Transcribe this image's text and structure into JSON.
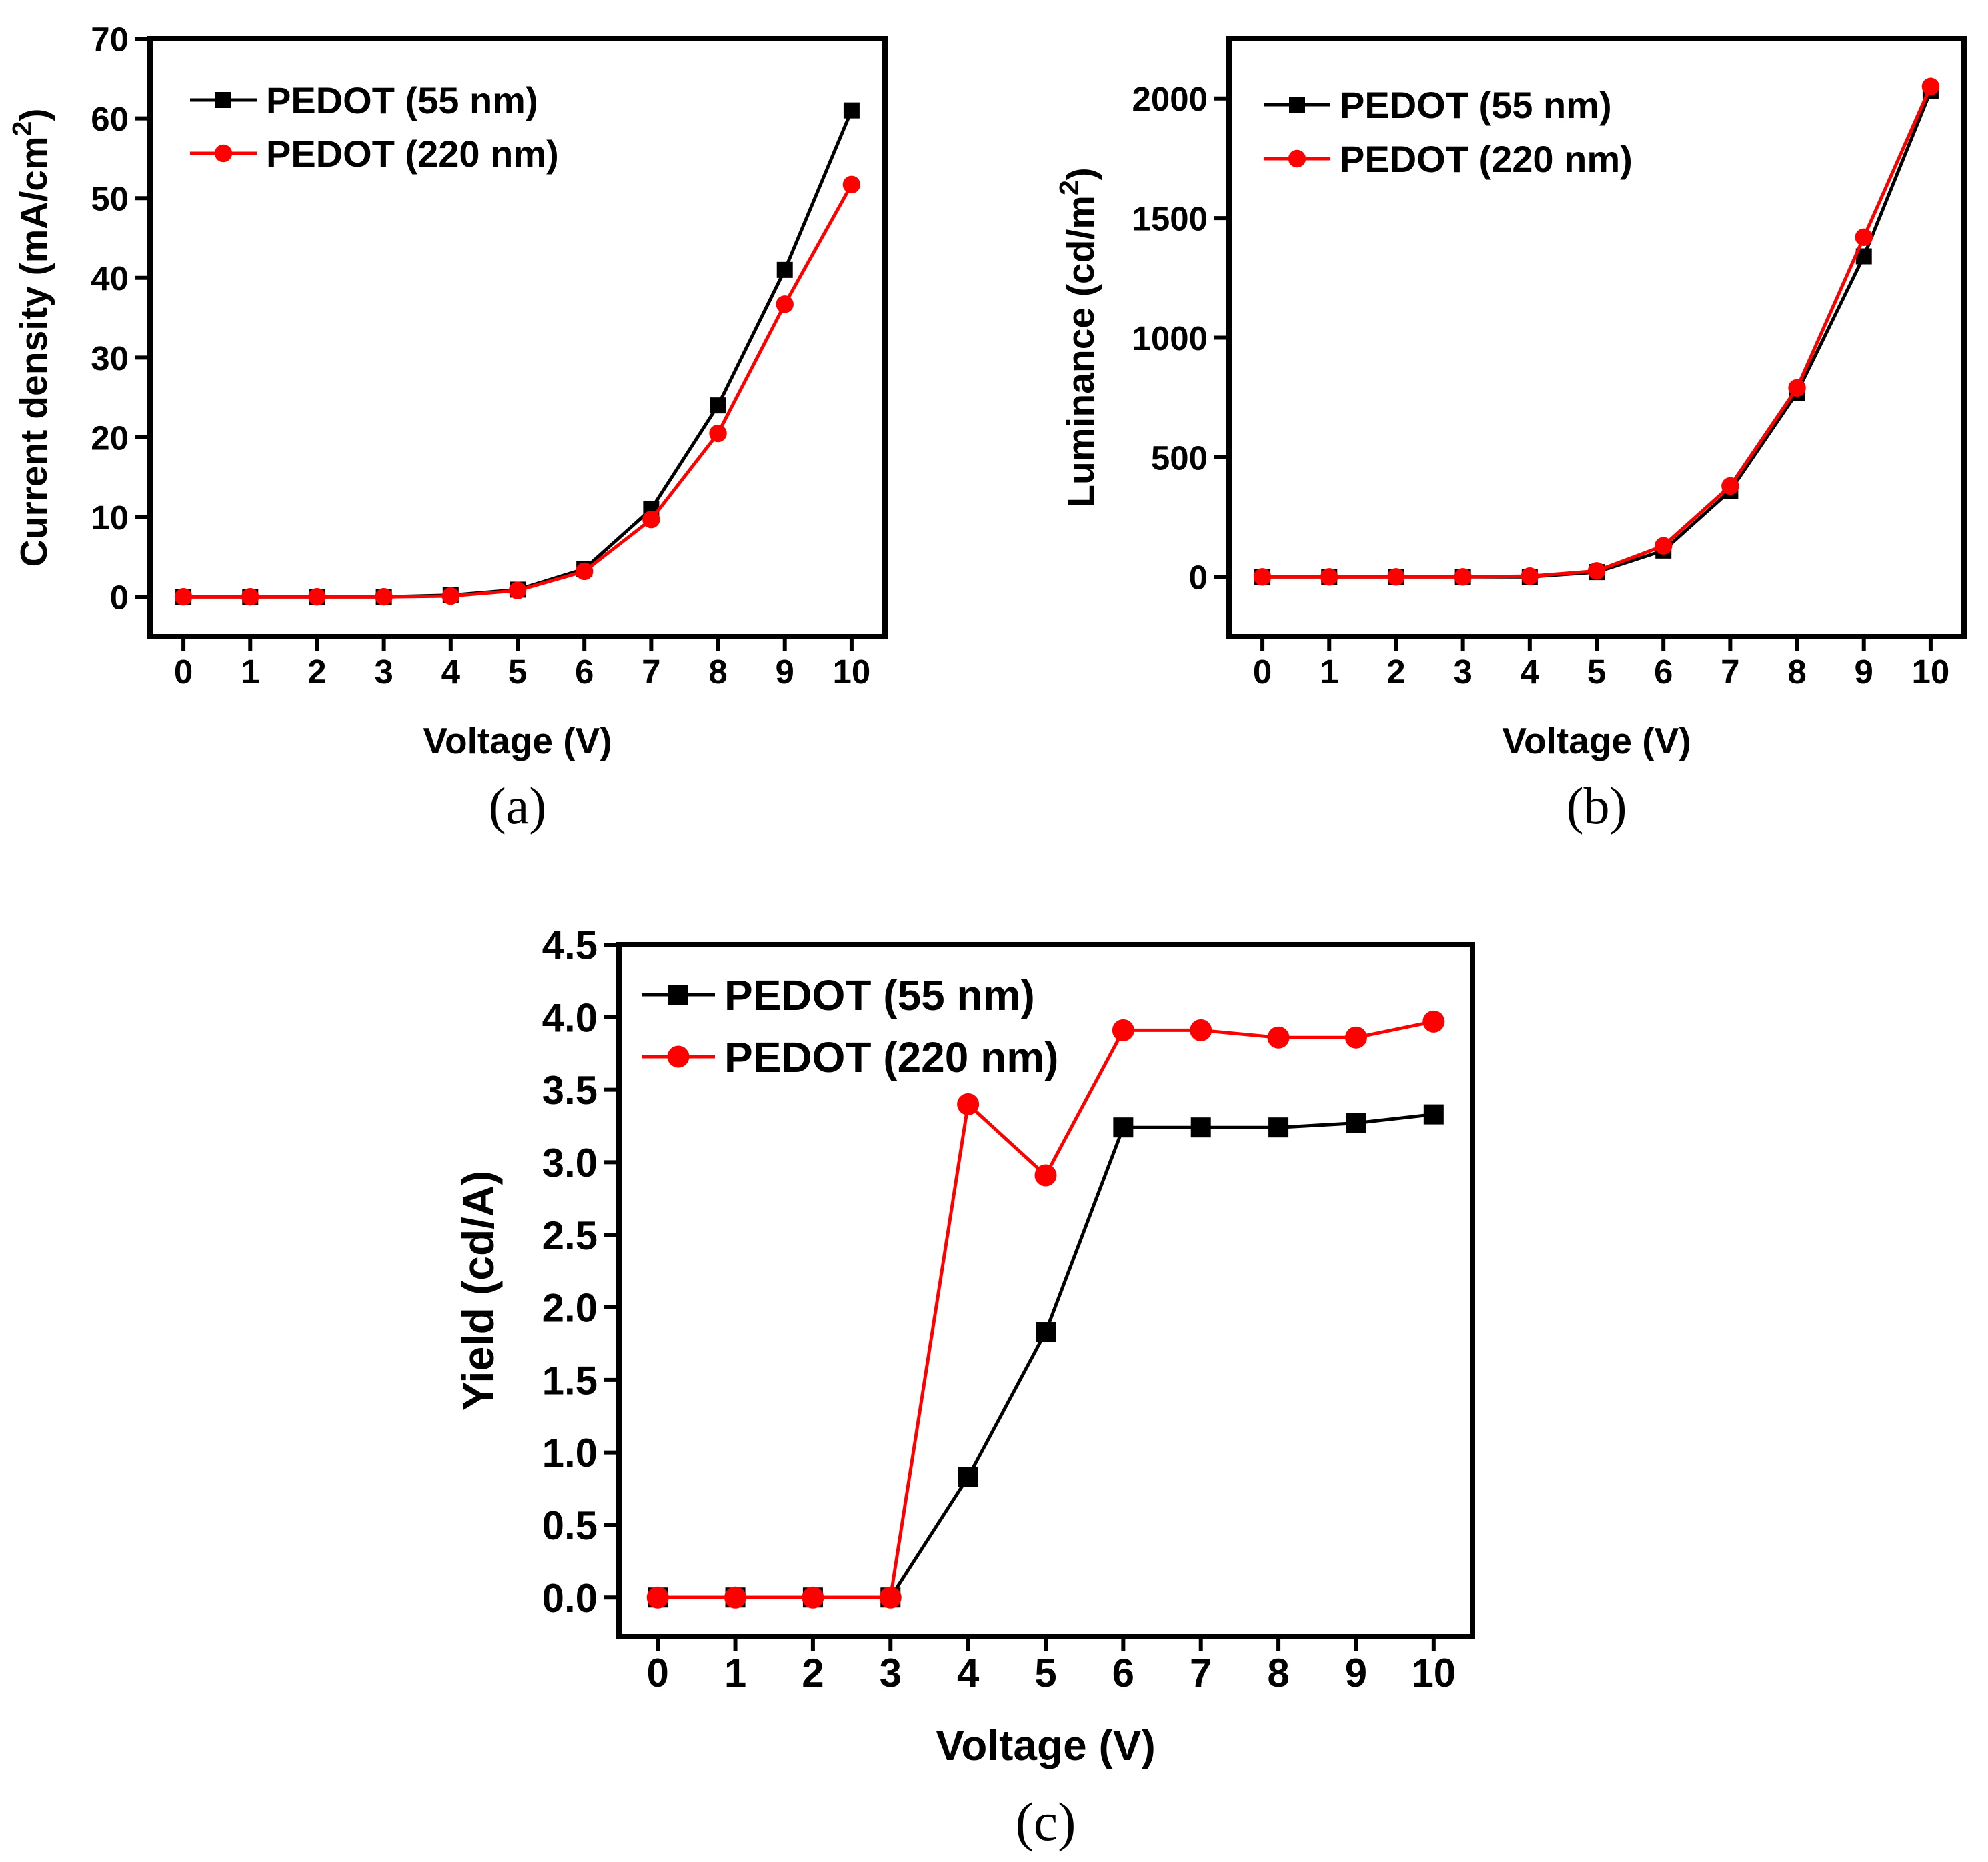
{
  "chart_data": [
    {
      "type": "line",
      "panel_label": "(a)",
      "title": "",
      "xlabel": "Voltage (V)",
      "ylabel": "Current density (mA/cm",
      "ylabel_sup": "2",
      "ylabel_close": ")",
      "xlim": [
        -0.5,
        10.5
      ],
      "ylim": [
        -5,
        70
      ],
      "xticks": [
        "0",
        "1",
        "2",
        "3",
        "4",
        "5",
        "6",
        "7",
        "8",
        "9",
        "10"
      ],
      "xtick_values": [
        0,
        1,
        2,
        3,
        4,
        5,
        6,
        7,
        8,
        9,
        10
      ],
      "yticks": [
        "0",
        "10",
        "20",
        "30",
        "40",
        "50",
        "60",
        "70"
      ],
      "ytick_values": [
        0,
        10,
        20,
        30,
        40,
        50,
        60,
        70
      ],
      "x": [
        0,
        1,
        2,
        3,
        4,
        5,
        6,
        7,
        8,
        9,
        10
      ],
      "legend_position": "top-left",
      "series": [
        {
          "name": "PEDOT (55 nm)",
          "color": "#000000",
          "marker": "square",
          "values": [
            0,
            0,
            0,
            0,
            0.2,
            0.9,
            3.5,
            11,
            24,
            41,
            61
          ]
        },
        {
          "name": "PEDOT (220 nm)",
          "color": "#ff0000",
          "marker": "circle",
          "values": [
            0,
            0,
            0,
            0,
            0.1,
            0.8,
            3.2,
            9.7,
            20.5,
            36.7,
            51.7
          ]
        }
      ]
    },
    {
      "type": "line",
      "panel_label": "(b)",
      "title": "",
      "xlabel": "Voltage (V)",
      "ylabel": "Luminance (cd/m",
      "ylabel_sup": "2",
      "ylabel_close": ")",
      "xlim": [
        -0.5,
        10.5
      ],
      "ylim": [
        -250,
        2250
      ],
      "xticks": [
        "0",
        "1",
        "2",
        "3",
        "4",
        "5",
        "6",
        "7",
        "8",
        "9",
        "10"
      ],
      "xtick_values": [
        0,
        1,
        2,
        3,
        4,
        5,
        6,
        7,
        8,
        9,
        10
      ],
      "yticks": [
        "0",
        "500",
        "1000",
        "1500",
        "2000"
      ],
      "ytick_values": [
        0,
        500,
        1000,
        1500,
        2000
      ],
      "x": [
        0,
        1,
        2,
        3,
        4,
        5,
        6,
        7,
        8,
        9,
        10
      ],
      "legend_position": "top-left",
      "series": [
        {
          "name": "PEDOT (55 nm)",
          "color": "#000000",
          "marker": "square",
          "values": [
            0,
            0,
            0,
            0,
            0,
            20,
            110,
            360,
            770,
            1340,
            2030
          ]
        },
        {
          "name": "PEDOT (220 nm)",
          "color": "#ff0000",
          "marker": "circle",
          "values": [
            0,
            0,
            0,
            0,
            3,
            25,
            130,
            380,
            790,
            1420,
            2050
          ]
        }
      ]
    },
    {
      "type": "line",
      "panel_label": "(c)",
      "title": "",
      "xlabel": "Voltage (V)",
      "ylabel": "Yield (cd/A)",
      "ylabel_sup": "",
      "ylabel_close": "",
      "xlim": [
        -0.5,
        10.5
      ],
      "ylim": [
        -0.27,
        4.5
      ],
      "xticks": [
        "0",
        "1",
        "2",
        "3",
        "4",
        "5",
        "6",
        "7",
        "8",
        "9",
        "10"
      ],
      "xtick_values": [
        0,
        1,
        2,
        3,
        4,
        5,
        6,
        7,
        8,
        9,
        10
      ],
      "yticks": [
        "0.0",
        "0.5",
        "1.0",
        "1.5",
        "2.0",
        "2.5",
        "3.0",
        "3.5",
        "4.0",
        "4.5"
      ],
      "ytick_values": [
        0,
        0.5,
        1,
        1.5,
        2,
        2.5,
        3,
        3.5,
        4,
        4.5
      ],
      "x": [
        0,
        1,
        2,
        3,
        4,
        5,
        6,
        7,
        8,
        9,
        10
      ],
      "legend_position": "top-left",
      "series": [
        {
          "name": "PEDOT (55 nm)",
          "color": "#000000",
          "marker": "square",
          "values": [
            0,
            0,
            0,
            0,
            0.83,
            1.83,
            3.24,
            3.24,
            3.24,
            3.27,
            3.33
          ]
        },
        {
          "name": "PEDOT (220 nm)",
          "color": "#ff0000",
          "marker": "circle",
          "values": [
            0,
            0,
            0,
            0,
            3.4,
            2.91,
            3.91,
            3.91,
            3.86,
            3.86,
            3.97
          ]
        }
      ]
    }
  ]
}
